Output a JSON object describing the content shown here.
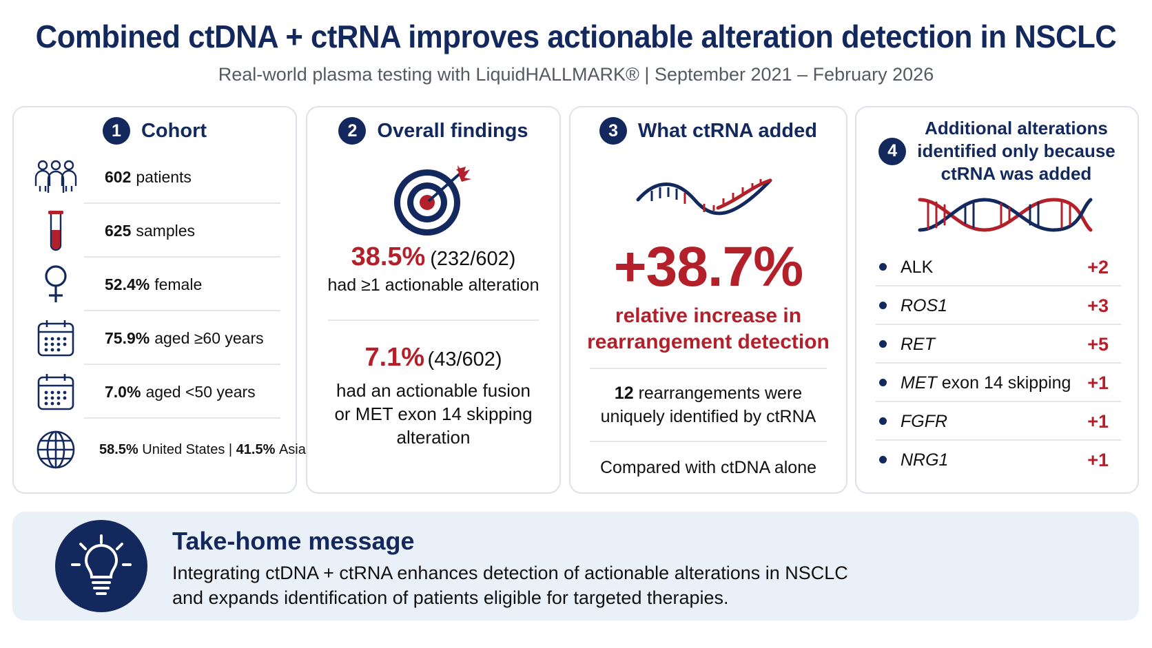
{
  "header": {
    "title": "Combined ctDNA + ctRNA improves actionable alteration detection in NSCLC",
    "subtitle": "Real-world plasma testing with LiquidHALLMARK® | September 2021 – February 2026"
  },
  "cohort": {
    "number": "1",
    "title": "Cohort",
    "rows": [
      {
        "icon": "people-icon",
        "value": "602",
        "label": "patients"
      },
      {
        "icon": "test-tube-icon",
        "value": "625",
        "label": "samples"
      },
      {
        "icon": "female-icon",
        "value": "52.4%",
        "label": "female"
      },
      {
        "icon": "calendar-icon",
        "value": "75.9%",
        "label": "aged ≥60 years"
      },
      {
        "icon": "calendar-icon",
        "value": "7.0%",
        "label": "aged <50 years"
      }
    ],
    "geo": {
      "icon": "globe-icon",
      "us_value": "58.5%",
      "us_label": "United States",
      "divider": "|",
      "asia_value": "41.5%",
      "asia_label": "Asia"
    }
  },
  "overall": {
    "number": "2",
    "title": "Overall findings",
    "icon": "target-icon",
    "finding1": {
      "pct": "38.5%",
      "frac": "(232/602)",
      "text": "had ≥1 actionable alteration"
    },
    "finding2": {
      "pct": "7.1%",
      "frac": "(43/602)",
      "lines": [
        "had an actionable fusion",
        "or MET exon 14 skipping",
        "alteration"
      ]
    }
  },
  "ctrna_added": {
    "number": "3",
    "title": "What ctRNA added",
    "icon": "rna-strand-icon",
    "big_pct": "+38.7%",
    "sub_lines": [
      "relative increase in",
      "rearrangement detection"
    ],
    "count": "12",
    "count_text_1": "rearrangements were",
    "count_text_2": "uniquely identified by ctRNA",
    "compare": "Compared with ctDNA alone"
  },
  "additional": {
    "number": "4",
    "title_lines": [
      "Additional alterations",
      "identified only because",
      "ctRNA was added"
    ],
    "icon": "dna-helix-icon",
    "items": [
      {
        "gene": "ALK",
        "suffix": "",
        "count": "+2"
      },
      {
        "gene": "ROS1",
        "suffix": "",
        "count": "+3"
      },
      {
        "gene": "RET",
        "suffix": "",
        "count": "+5"
      },
      {
        "gene": "MET",
        "suffix": "exon 14 skipping",
        "count": "+1"
      },
      {
        "gene": "FGFR",
        "suffix": "",
        "count": "+1"
      },
      {
        "gene": "NRG1",
        "suffix": "",
        "count": "+1"
      }
    ]
  },
  "takehome": {
    "icon": "lightbulb-icon",
    "title": "Take-home message",
    "line1": "Integrating ctDNA + ctRNA enhances detection of actionable alterations in NSCLC",
    "line2": "and expands identification of patients eligible for targeted therapies."
  },
  "colors": {
    "navy": "#13285c",
    "red": "#b3202a",
    "panel": "#eaf0f8"
  }
}
